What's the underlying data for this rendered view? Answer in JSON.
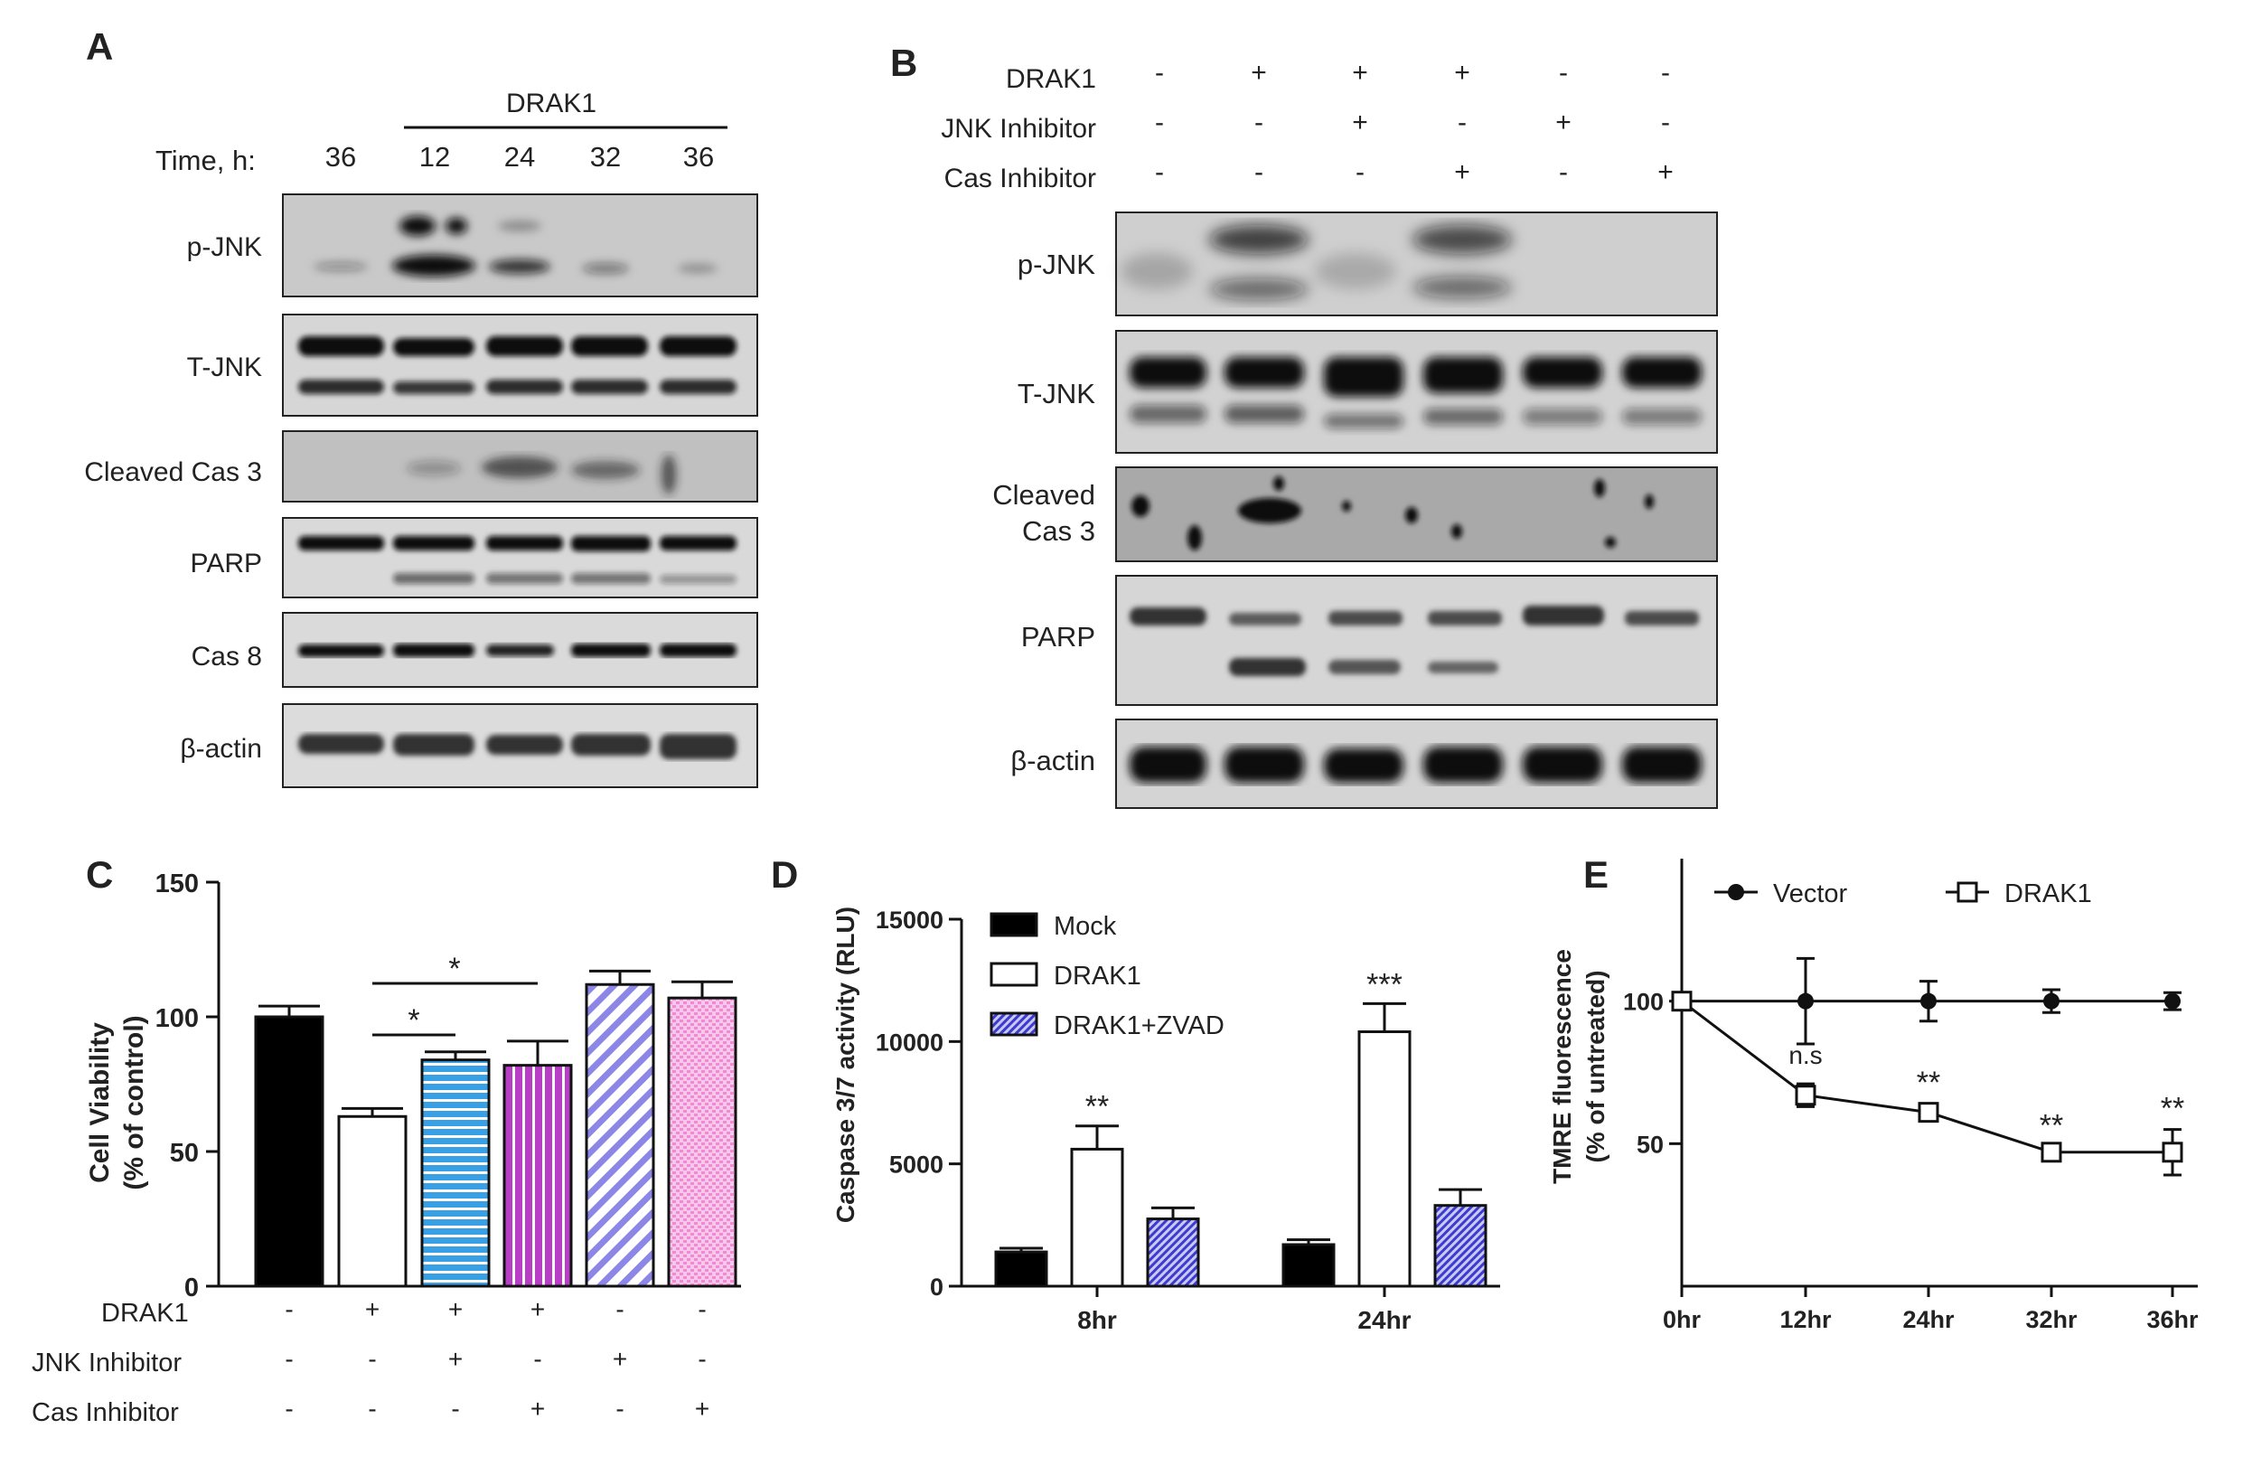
{
  "panelA": {
    "letter": "A",
    "drak1_header": "DRAK1",
    "time_label": "Time, h:",
    "time_points": [
      "36",
      "12",
      "24",
      "32",
      "36"
    ],
    "blots": [
      {
        "label": "p-JNK"
      },
      {
        "label": "T-JNK"
      },
      {
        "label": "Cleaved Cas 3"
      },
      {
        "label": "PARP"
      },
      {
        "label": "Cas 8"
      },
      {
        "label": "β-actin"
      }
    ]
  },
  "panelB": {
    "letter": "B",
    "conditions": [
      {
        "label": "DRAK1",
        "signs": [
          "-",
          "+",
          "+",
          "+",
          "-",
          "-"
        ]
      },
      {
        "label": "JNK Inhibitor",
        "signs": [
          "-",
          "-",
          "+",
          "-",
          "+",
          "-"
        ]
      },
      {
        "label": "Cas Inhibitor",
        "signs": [
          "-",
          "-",
          "-",
          "+",
          "-",
          "+"
        ]
      }
    ],
    "blots": [
      {
        "label": "p-JNK"
      },
      {
        "label": "T-JNK"
      },
      {
        "label": "Cleaved",
        "label2": "Cas 3"
      },
      {
        "label": "PARP"
      },
      {
        "label": "β-actin"
      }
    ]
  },
  "panelC": {
    "letter": "C",
    "ylabel1": "Cell Viability",
    "ylabel2": "(% of control)",
    "star1": "*",
    "star2": "*",
    "conditions": [
      {
        "label": "DRAK1",
        "signs": [
          "-",
          "+",
          "+",
          "+",
          "-",
          "-"
        ]
      },
      {
        "label": "JNK Inhibitor",
        "signs": [
          "-",
          "-",
          "+",
          "-",
          "+",
          "-"
        ]
      },
      {
        "label": "Cas Inhibitor",
        "signs": [
          "-",
          "-",
          "-",
          "+",
          "-",
          "+"
        ]
      }
    ]
  },
  "panelD": {
    "letter": "D",
    "ylabel": "Caspase 3/7 activity (RLU)"
  },
  "panelE": {
    "letter": "E",
    "ylabel1": "TMRE fluorescence",
    "ylabel2": "(% of untreated)"
  },
  "chart_data": [
    {
      "id": "C",
      "type": "bar",
      "ylabel": "Cell Viability (% of control)",
      "ylim": [
        0,
        150
      ],
      "yticks": [
        0,
        50,
        100,
        150
      ],
      "values": [
        100,
        63,
        84,
        82,
        112,
        107
      ],
      "errors": [
        4,
        3,
        3,
        9,
        5,
        6
      ],
      "colors": [
        "#000000",
        "#ffffff",
        "#3aa0e6",
        "#b83ec6",
        "#8c86e6",
        "#f29ad8"
      ],
      "patterns": [
        "solid",
        "empty",
        "horizontal-stripes",
        "vertical-stripes",
        "diagonal-stripes",
        "dots"
      ],
      "significance": [
        {
          "from": 2,
          "to": 3,
          "label": "*"
        },
        {
          "from": 2,
          "to": 4,
          "label": "*"
        }
      ]
    },
    {
      "id": "D",
      "type": "bar",
      "ylabel": "Caspase 3/7 activity (RLU)",
      "ylim": [
        0,
        15000
      ],
      "yticks": [
        0,
        5000,
        10000,
        15000
      ],
      "categories": [
        "8hr",
        "24hr"
      ],
      "series": [
        {
          "name": "Mock",
          "values": [
            1400,
            1700
          ],
          "errors": [
            150,
            200
          ],
          "color": "#000000",
          "pattern": "solid"
        },
        {
          "name": "DRAK1",
          "values": [
            5600,
            10400
          ],
          "errors": [
            950,
            1150
          ],
          "color": "#ffffff",
          "pattern": "empty"
        },
        {
          "name": "DRAK1+ZVAD",
          "values": [
            2750,
            3300
          ],
          "errors": [
            450,
            650
          ],
          "color": "#4a4ad8",
          "pattern": "diagonal"
        }
      ],
      "annotations": [
        {
          "category": "8hr",
          "series": "DRAK1",
          "text": "**"
        },
        {
          "category": "24hr",
          "series": "DRAK1",
          "text": "***"
        }
      ]
    },
    {
      "id": "E",
      "type": "line",
      "ylabel": "TMRE fluorescence (% of untreated)",
      "yticks": [
        50,
        100
      ],
      "ylim": [
        0,
        150
      ],
      "categories": [
        "0hr",
        "12hr",
        "24hr",
        "32hr",
        "36hr"
      ],
      "series": [
        {
          "name": "Vector",
          "marker": "filled-circle",
          "values": [
            100,
            100,
            100,
            100,
            100
          ],
          "errors": [
            2,
            15,
            7,
            4,
            3
          ]
        },
        {
          "name": "DRAK1",
          "marker": "open-square",
          "values": [
            100,
            67,
            61,
            47,
            47
          ],
          "errors": [
            2,
            4,
            3,
            2,
            8
          ]
        }
      ],
      "annotations": [
        {
          "index": 1,
          "text": "n.s"
        },
        {
          "index": 2,
          "text": "**"
        },
        {
          "index": 3,
          "text": "**"
        },
        {
          "index": 4,
          "text": "**"
        }
      ]
    }
  ]
}
